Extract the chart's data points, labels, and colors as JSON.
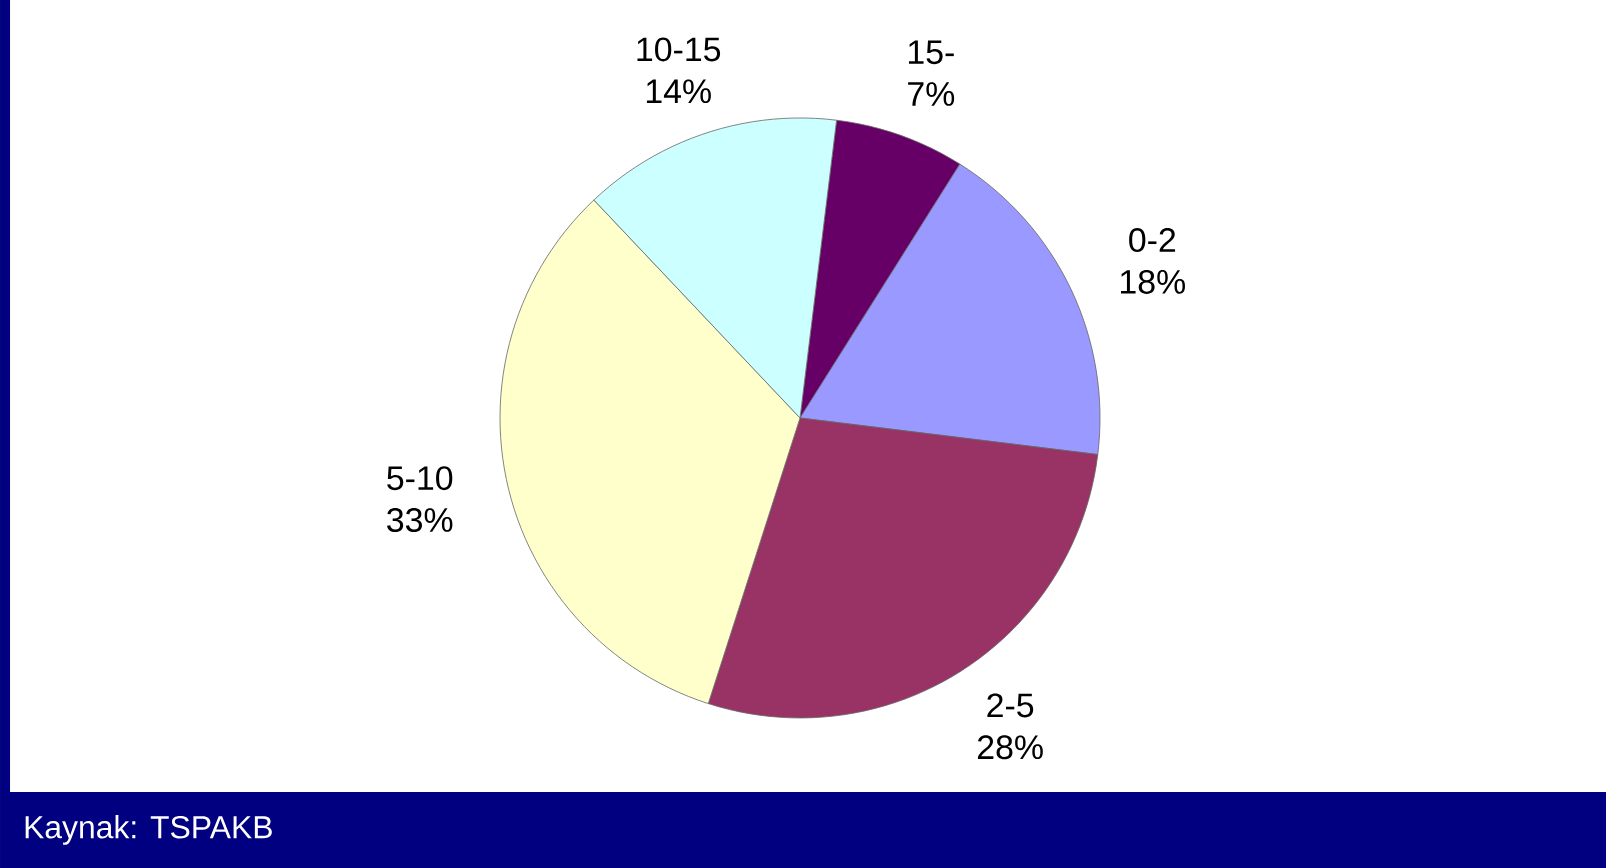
{
  "chart_data": {
    "type": "pie",
    "categories": [
      "15-",
      "0-2",
      "2-5",
      "5-10",
      "10-15"
    ],
    "values": [
      7,
      18,
      28,
      33,
      14
    ],
    "value_labels": [
      "7%",
      "18%",
      "28%",
      "33%",
      "14%"
    ],
    "colors": [
      "#660066",
      "#9999ff",
      "#993366",
      "#ffffcc",
      "#ccffff"
    ],
    "annotations": [
      "Kaynak: TSPAKB"
    ]
  }
}
